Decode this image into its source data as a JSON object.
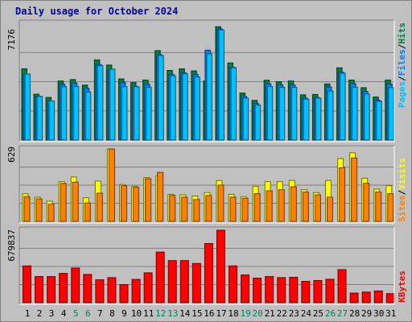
{
  "title": "Daily usage for October 2024",
  "colors": {
    "hits": "#008040",
    "files": "#0080ff",
    "pages": "#00c0ff",
    "visits": "#ffff00",
    "sites": "#ff8000",
    "kbytes": "#ff0000",
    "weekend_label": "#00805c",
    "weekday_label": "#000000",
    "title": "#0000a0"
  },
  "panels": {
    "top": {
      "max_label": "7176",
      "legend": [
        {
          "text": "Pages",
          "color": "#00c0ff"
        },
        {
          "text": "Files",
          "color": "#0080ff"
        },
        {
          "text": "Hits",
          "color": "#008040"
        }
      ]
    },
    "mid": {
      "max_label": "629",
      "legend": [
        {
          "text": "Sites",
          "color": "#ff8000"
        },
        {
          "text": "Visits",
          "color": "#ffff00"
        }
      ]
    },
    "bot": {
      "max_label": "679837",
      "legend": [
        {
          "text": "KBytes",
          "color": "#ff0000"
        }
      ]
    }
  },
  "chart_data": {
    "type": "bar",
    "title": "Daily usage for October 2024",
    "categories": [
      "1",
      "2",
      "3",
      "4",
      "5",
      "6",
      "7",
      "8",
      "9",
      "10",
      "11",
      "12",
      "13",
      "14",
      "15",
      "16",
      "17",
      "18",
      "19",
      "20",
      "21",
      "22",
      "23",
      "24",
      "25",
      "26",
      "27",
      "28",
      "29",
      "30",
      "31"
    ],
    "weekend_days": [
      "5",
      "6",
      "12",
      "13",
      "19",
      "20",
      "26",
      "27"
    ],
    "charts": [
      {
        "name": "hits-files-pages",
        "ymax": 7176,
        "series": [
          {
            "name": "Hits",
            "values": [
              4380,
              2820,
              2620,
              3630,
              3720,
              3380,
              4930,
              4610,
              3760,
              3530,
              3690,
              5500,
              4280,
              4380,
              4250,
              3630,
              6970,
              4740,
              2890,
              2440,
              3680,
              3590,
              3630,
              2780,
              2800,
              3450,
              4440,
              3690,
              3220,
              2650,
              3690
            ]
          },
          {
            "name": "Files",
            "values": [
              4060,
              2690,
              2400,
              3430,
              3500,
              3180,
              4640,
              4320,
              3530,
              3300,
              3440,
              5250,
              4040,
              4140,
              4030,
              5530,
              6830,
              4480,
              2680,
              2240,
              3460,
              3390,
              3390,
              2580,
              2610,
              3260,
              4180,
              3470,
              2990,
              2450,
              3440
            ]
          },
          {
            "name": "Pages",
            "values": [
              4060,
              2690,
              2400,
              3280,
              3300,
              2950,
              4580,
              4360,
              3290,
              3280,
              3250,
              5200,
              3950,
              4070,
              3880,
              5300,
              6760,
              4450,
              2580,
              2160,
              3290,
              3240,
              3240,
              2510,
              2580,
              3010,
              4110,
              3250,
              2830,
              2390,
              3220
            ]
          }
        ]
      },
      {
        "name": "visits-sites",
        "ymax": 629,
        "series": [
          {
            "name": "Visits",
            "values": [
              240,
              210,
              175,
              345,
              385,
              205,
              350,
              629,
              320,
              305,
              380,
              395,
              235,
              230,
              220,
              250,
              355,
              235,
              215,
              305,
              345,
              345,
              355,
              275,
              250,
              355,
              545,
              595,
              375,
              280,
              310
            ]
          },
          {
            "name": "Sites",
            "values": [
              215,
              195,
              150,
              330,
              340,
              160,
              245,
              629,
              310,
              295,
              370,
              425,
              225,
              210,
              190,
              225,
              315,
              210,
              200,
              240,
              265,
              275,
              300,
              255,
              230,
              210,
              465,
              550,
              330,
              255,
              240
            ]
          }
        ]
      },
      {
        "name": "kbytes",
        "ymax": 679837,
        "series": [
          {
            "name": "KBytes",
            "values": [
              345000,
              245000,
              245000,
              275000,
              325000,
              265000,
              215000,
              235000,
              170000,
              218000,
              280000,
              475000,
              395000,
              395000,
              368000,
              555000,
              679837,
              345000,
              260000,
              230000,
              245000,
              235000,
              238000,
              200000,
              208000,
              220000,
              310000,
              90000,
              100000,
              110000,
              85000
            ]
          }
        ]
      }
    ]
  }
}
